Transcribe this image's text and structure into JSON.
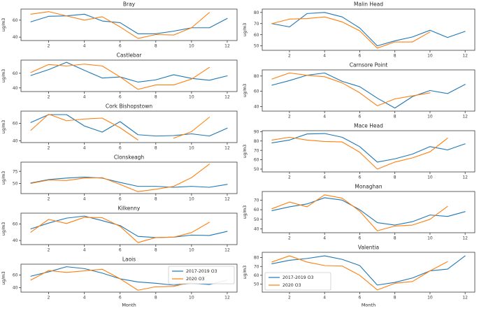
{
  "figure": {
    "background": "#ffffff",
    "xlabel": "Month",
    "ylabel": "ug/m3",
    "x_ticks": [
      2,
      4,
      6,
      8,
      10,
      12
    ],
    "accent_colors": {
      "series_2017_2019": "#1f77b4",
      "series_2020": "#ff7f0e"
    }
  },
  "legend": {
    "items": [
      {
        "label": "2017-2019 O3",
        "color": "#1f77b4"
      },
      {
        "label": "2020 O3",
        "color": "#ff7f0e"
      }
    ]
  },
  "chart_data": [
    {
      "type": "line",
      "title": "Bray",
      "column": "left",
      "ylabel": "ug/m3",
      "x": [
        1,
        2,
        3,
        4,
        5,
        6,
        7,
        8,
        9,
        10,
        11,
        12
      ],
      "yticks": [
        40,
        60
      ],
      "ylim": [
        36,
        73
      ],
      "series": [
        {
          "name": "2017-2019 O3",
          "color": "#1f77b4",
          "values": [
            58,
            64.5,
            65,
            67,
            59,
            57,
            44,
            44,
            47,
            51,
            51,
            62
          ]
        },
        {
          "name": "2020 O3",
          "color": "#ff7f0e",
          "values": [
            67,
            70,
            65,
            60,
            64,
            52,
            38.5,
            43,
            42.5,
            51,
            69,
            null
          ]
        }
      ]
    },
    {
      "type": "line",
      "title": "Castlebar",
      "column": "left",
      "ylabel": "ug/m3",
      "x": [
        1,
        2,
        3,
        4,
        5,
        6,
        7,
        8,
        9,
        10,
        11,
        12
      ],
      "yticks": [
        40,
        60
      ],
      "ylim": [
        35,
        78
      ],
      "series": [
        {
          "name": "2017-2019 O3",
          "color": "#1f77b4",
          "values": [
            57,
            65,
            75,
            64,
            53.5,
            55,
            48,
            51,
            58,
            53,
            50.5,
            56.5
          ]
        },
        {
          "name": "2020 O3",
          "color": "#ff7f0e",
          "values": [
            61,
            72,
            70,
            72.5,
            70,
            55,
            38,
            44,
            44,
            52,
            68,
            null
          ]
        }
      ]
    },
    {
      "type": "line",
      "title": "Cork Bishopstown",
      "column": "left",
      "ylabel": "ug/m3",
      "x": [
        1,
        2,
        3,
        4,
        5,
        6,
        7,
        8,
        9,
        10,
        11,
        12
      ],
      "yticks": [
        40,
        60
      ],
      "ylim": [
        38,
        74
      ],
      "series": [
        {
          "name": "2017-2019 O3",
          "color": "#1f77b4",
          "values": [
            61,
            70,
            70,
            57,
            50,
            62,
            47,
            45.5,
            46,
            48,
            45.5,
            54.5
          ]
        },
        {
          "name": "2020 O3",
          "color": "#ff7f0e",
          "values": [
            52,
            70.5,
            63,
            65,
            66,
            55,
            41,
            null,
            43,
            50.5,
            67,
            null
          ]
        }
      ]
    },
    {
      "type": "line",
      "title": "Clonskeagh",
      "column": "left",
      "ylabel": "ug/m3",
      "x": [
        1,
        2,
        3,
        4,
        5,
        6,
        7,
        8,
        9,
        10,
        11,
        12
      ],
      "yticks": [
        50,
        75
      ],
      "ylim": [
        29,
        94
      ],
      "series": [
        {
          "name": "2017-2019 O3",
          "color": "#1f77b4",
          "values": [
            51,
            58,
            61,
            63,
            61,
            52,
            44,
            44,
            42,
            44,
            42,
            48
          ]
        },
        {
          "name": "2020 O3",
          "color": "#ff7f0e",
          "values": [
            50,
            57,
            56,
            61,
            62,
            48,
            33,
            38,
            44,
            62,
            90,
            null
          ]
        }
      ]
    },
    {
      "type": "line",
      "title": "Kilkenny",
      "column": "left",
      "ylabel": "ug/m3",
      "x": [
        1,
        2,
        3,
        4,
        5,
        6,
        7,
        8,
        9,
        10,
        11,
        12
      ],
      "yticks": [
        40,
        60
      ],
      "ylim": [
        35,
        73
      ],
      "series": [
        {
          "name": "2017-2019 O3",
          "color": "#1f77b4",
          "values": [
            54,
            61,
            67,
            69.5,
            64,
            58,
            45,
            43.5,
            44,
            46.5,
            46,
            51
          ]
        },
        {
          "name": "2020 O3",
          "color": "#ff7f0e",
          "values": [
            50,
            65.5,
            60.5,
            68,
            67.5,
            57,
            37.5,
            43.5,
            44,
            49.5,
            62,
            null
          ]
        }
      ]
    },
    {
      "type": "line",
      "title": "Laois",
      "column": "left",
      "ylabel": "ug/m3",
      "xlabel": "Month",
      "legend_position": "upper-right",
      "x": [
        1,
        2,
        3,
        4,
        5,
        6,
        7,
        8,
        9,
        10,
        11,
        12
      ],
      "yticks": [
        40,
        60
      ],
      "ylim": [
        33,
        77
      ],
      "series": [
        {
          "name": "2017-2019 O3",
          "color": "#1f77b4",
          "values": [
            58,
            65,
            73,
            70,
            63,
            54,
            49,
            47,
            44,
            47,
            45,
            52
          ]
        },
        {
          "name": "2020 O3",
          "color": "#ff7f0e",
          "values": [
            52,
            67,
            64,
            66.5,
            69,
            54,
            36,
            41.5,
            42,
            49,
            60,
            null
          ]
        }
      ]
    },
    {
      "type": "line",
      "title": "Malin Head",
      "column": "right",
      "ylabel": "ug/m3",
      "x": [
        1,
        2,
        3,
        4,
        5,
        6,
        7,
        8,
        9,
        10,
        11,
        12
      ],
      "yticks": [
        50,
        60,
        70,
        80
      ],
      "ylim": [
        46,
        83
      ],
      "series": [
        {
          "name": "2017-2019 O3",
          "color": "#1f77b4",
          "values": [
            70,
            67,
            79,
            80,
            76,
            66,
            50,
            54.5,
            58,
            64,
            57.5,
            63
          ]
        },
        {
          "name": "2020 O3",
          "color": "#ff7f0e",
          "values": [
            70,
            74,
            74.5,
            76,
            71.5,
            63.5,
            48,
            53.5,
            53.5,
            62.5,
            null,
            null
          ]
        }
      ]
    },
    {
      "type": "line",
      "title": "Carnsore Point",
      "column": "right",
      "ylabel": "ug/m3",
      "x": [
        1,
        2,
        3,
        4,
        5,
        6,
        7,
        8,
        9,
        10,
        11,
        12
      ],
      "yticks": [
        40,
        60,
        80
      ],
      "ylim": [
        34,
        88
      ],
      "series": [
        {
          "name": "2017-2019 O3",
          "color": "#1f77b4",
          "values": [
            68,
            74,
            81,
            84,
            73,
            66,
            51,
            38,
            53,
            61,
            57,
            69
          ]
        },
        {
          "name": "2020 O3",
          "color": "#ff7f0e",
          "values": [
            76,
            84,
            81,
            79,
            71,
            58,
            41,
            50,
            54,
            58,
            null,
            null
          ]
        }
      ]
    },
    {
      "type": "line",
      "title": "Mace Head",
      "column": "right",
      "ylabel": "ug/m3",
      "x": [
        1,
        2,
        3,
        4,
        5,
        6,
        7,
        8,
        9,
        10,
        11,
        12
      ],
      "yticks": [
        50,
        60,
        70,
        80,
        90
      ],
      "ylim": [
        47,
        91
      ],
      "series": [
        {
          "name": "2017-2019 O3",
          "color": "#1f77b4",
          "values": [
            78,
            81,
            87.5,
            88,
            84,
            74,
            57.5,
            61,
            66,
            74,
            70.5,
            77
          ]
        },
        {
          "name": "2020 O3",
          "color": "#ff7f0e",
          "values": [
            81,
            84,
            81,
            79.5,
            79,
            68,
            50,
            57.5,
            62,
            68.5,
            83,
            null
          ]
        }
      ]
    },
    {
      "type": "line",
      "title": "Monaghan",
      "column": "right",
      "ylabel": "ug/m3",
      "x": [
        1,
        2,
        3,
        4,
        5,
        6,
        7,
        8,
        9,
        10,
        11,
        12
      ],
      "yticks": [
        40,
        50,
        60,
        70
      ],
      "ylim": [
        36,
        79
      ],
      "series": [
        {
          "name": "2017-2019 O3",
          "color": "#1f77b4",
          "values": [
            59,
            63,
            66,
            72.5,
            70,
            60,
            46.5,
            44,
            47.5,
            54.5,
            53,
            58
          ]
        },
        {
          "name": "2020 O3",
          "color": "#ff7f0e",
          "values": [
            61,
            68,
            63,
            75.5,
            72,
            58.5,
            38,
            43,
            44,
            50,
            63.5,
            null
          ]
        }
      ]
    },
    {
      "type": "line",
      "title": "Valentia",
      "column": "right",
      "ylabel": "ug/m3",
      "xlabel": "Month",
      "legend_position": "lower-left",
      "x": [
        1,
        2,
        3,
        4,
        5,
        6,
        7,
        8,
        9,
        10,
        11,
        12
      ],
      "yticks": [
        50,
        60,
        70,
        80
      ],
      "ylim": [
        41,
        86
      ],
      "series": [
        {
          "name": "2017-2019 O3",
          "color": "#1f77b4",
          "values": [
            73,
            77,
            79,
            82,
            78,
            71,
            49,
            52,
            57,
            65,
            67,
            82
          ]
        },
        {
          "name": "2020 O3",
          "color": "#ff7f0e",
          "values": [
            75,
            82,
            75,
            71,
            70.5,
            60,
            43.5,
            51,
            53,
            65,
            75.5,
            null
          ]
        }
      ]
    }
  ]
}
